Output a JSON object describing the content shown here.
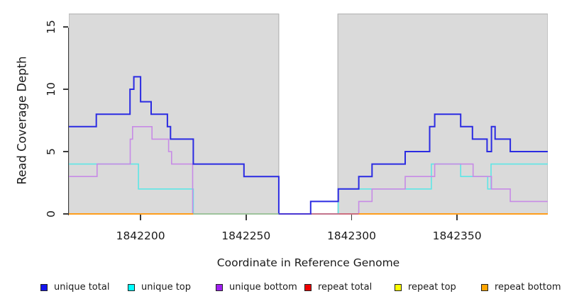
{
  "chart_data": {
    "type": "line",
    "subtype": "step-coverage",
    "title": "",
    "xlabel": "Coordinate in Reference Genome",
    "ylabel": "Read Coverage Depth",
    "xlim": [
      1842166,
      1842393
    ],
    "ylim": [
      0,
      16
    ],
    "xticks": [
      1842200,
      1842250,
      1842300,
      1842350
    ],
    "yticks": [
      0,
      5,
      10,
      15
    ],
    "grid": false,
    "legend_position": "bottom",
    "plot_background": "#ffffff",
    "shaded_region_color": "#dadada",
    "shaded_regions": [
      [
        1842166,
        1842265.5
      ],
      [
        1842293.5,
        1842393
      ]
    ],
    "unshaded_gap_region": [
      1842265.5,
      1842293.5
    ],
    "series": [
      {
        "name": "unique total",
        "color": "#2b2be2",
        "width": 2,
        "steps": [
          [
            1842166,
            7
          ],
          [
            1842179,
            8
          ],
          [
            1842195,
            10
          ],
          [
            1842196.8,
            11
          ],
          [
            1842200,
            9
          ],
          [
            1842205,
            8
          ],
          [
            1842212.7,
            7
          ],
          [
            1842214.2,
            6
          ],
          [
            1842225,
            4
          ],
          [
            1842249,
            3
          ],
          [
            1842265.5,
            0
          ],
          [
            1842280.6,
            1
          ],
          [
            1842293.7,
            2
          ],
          [
            1842303.4,
            3
          ],
          [
            1842309.7,
            4
          ],
          [
            1842325.4,
            5
          ],
          [
            1842337,
            7
          ],
          [
            1842339.4,
            8
          ],
          [
            1842351.7,
            7
          ],
          [
            1842357.3,
            6
          ],
          [
            1842364.2,
            5
          ],
          [
            1842366.3,
            7
          ],
          [
            1842368,
            6
          ],
          [
            1842375.2,
            5
          ]
        ]
      },
      {
        "name": "unique top",
        "color": "#5ee6e6",
        "width": 1.6,
        "steps": [
          [
            1842166,
            4
          ],
          [
            1842199,
            2
          ],
          [
            1842225,
            0
          ],
          [
            1842293.7,
            2
          ],
          [
            1842337.8,
            4
          ],
          [
            1842351.7,
            3
          ],
          [
            1842364.5,
            2
          ],
          [
            1842366.1,
            4
          ]
        ]
      },
      {
        "name": "unique bottom",
        "color": "#c78ae6",
        "width": 1.6,
        "steps": [
          [
            1842166,
            3
          ],
          [
            1842179.4,
            4
          ],
          [
            1842195.1,
            6
          ],
          [
            1842196.2,
            7
          ],
          [
            1842205.4,
            6
          ],
          [
            1842213.3,
            5
          ],
          [
            1842214.7,
            4
          ],
          [
            1842224.7,
            0
          ],
          [
            1842303.4,
            1
          ],
          [
            1842309.7,
            2
          ],
          [
            1842325.4,
            3
          ],
          [
            1842339.4,
            4
          ],
          [
            1842357.6,
            3
          ],
          [
            1842366.3,
            2
          ],
          [
            1842375.2,
            1
          ]
        ]
      },
      {
        "name": "repeat total",
        "color": "#dd2222",
        "width": 1.6,
        "steps": [
          [
            1842166,
            0
          ]
        ]
      },
      {
        "name": "repeat top",
        "color": "#f0f000",
        "width": 1.6,
        "steps": [
          [
            1842166,
            0
          ]
        ]
      },
      {
        "name": "repeat bottom",
        "color": "#ff9d1c",
        "width": 2,
        "steps": [
          [
            1842166,
            0
          ]
        ]
      }
    ],
    "draw_order": [
      "repeat total",
      "repeat top",
      "repeat bottom",
      "unique top",
      "unique bottom",
      "unique total"
    ],
    "baseline_overlap_segments": [
      {
        "from": 1842166,
        "to": 1842225,
        "color": "#ff9d1c",
        "width": 2
      },
      {
        "from": 1842225,
        "to": 1842265.5,
        "color": "#95cd95",
        "width": 1.6
      },
      {
        "from": 1842265.5,
        "to": 1842281,
        "color": "#4a36d2",
        "width": 2
      },
      {
        "from": 1842281,
        "to": 1842303.4,
        "color": "#c4637f",
        "width": 1.6
      },
      {
        "from": 1842303.4,
        "to": 1842393,
        "color": "#ff9d1c",
        "width": 2
      }
    ]
  },
  "legend": {
    "items": [
      {
        "label": "unique total",
        "color": "#1414ee"
      },
      {
        "label": "unique top",
        "color": "#00ffff"
      },
      {
        "label": "unique bottom",
        "color": "#a020f0"
      },
      {
        "label": "repeat total",
        "color": "#ee0000"
      },
      {
        "label": "repeat top",
        "color": "#ffff00"
      },
      {
        "label": "repeat bottom",
        "color": "#ffa500"
      }
    ]
  }
}
